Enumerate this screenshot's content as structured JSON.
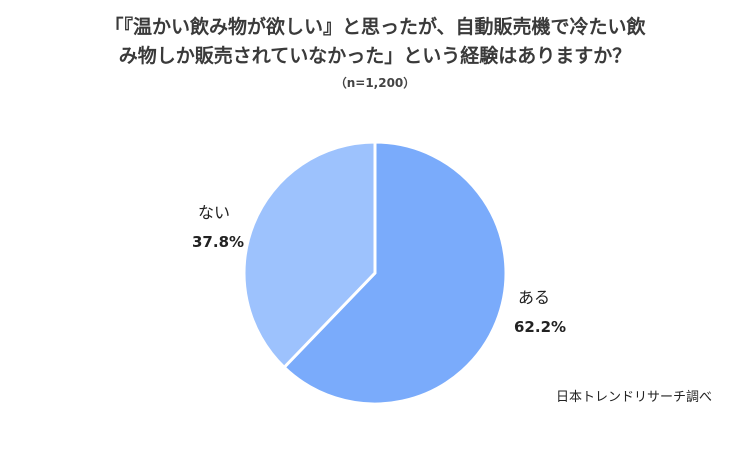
{
  "title_lines": [
    "「『温かい飲み物が欲しい』と思ったが、自動販売機で冷たい飲",
    "み物しか販売されていなかった」という経験はありますか？"
  ],
  "subtitle": "（n=1,200）",
  "source": "日本トレンドリサーチ調べ",
  "colors": {
    "aru": "#7aabfb",
    "nai": "#9dc2fd",
    "separator": "#ffffff"
  },
  "chart_data": {
    "type": "pie",
    "title": "「『温かい飲み物が欲しい』と思ったが、自動販売機で冷たい飲み物しか販売されていなかった」という経験はありますか？",
    "n": "n=1,200",
    "slices": [
      {
        "label": "ある",
        "value": 62.2,
        "display": "62.2%"
      },
      {
        "label": "ない",
        "value": 37.8,
        "display": "37.8%"
      }
    ],
    "start": "12 o'clock",
    "direction": "clockwise"
  }
}
